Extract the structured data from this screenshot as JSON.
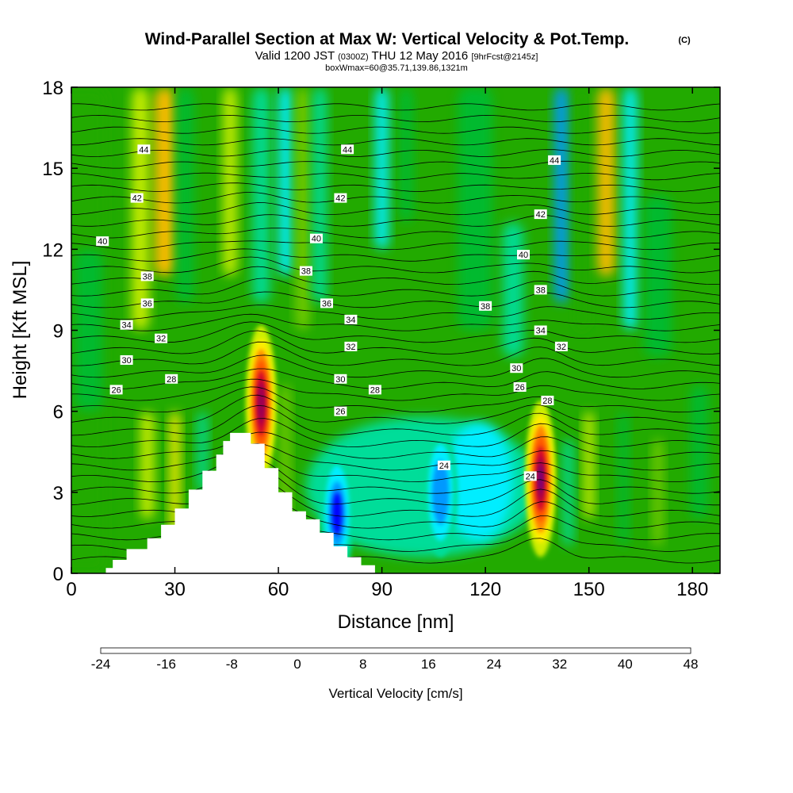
{
  "chart_data": {
    "type": "heatmap",
    "title": "Wind-Parallel Section at Max W: Vertical Velocity & Pot.Temp.",
    "title_mark": "(C)",
    "subtitle": {
      "valid": "Valid 1200 JST",
      "zulu": "(0300Z)",
      "date": "THU 12 May 2016",
      "forecast": "[9hrFcst@2145z]"
    },
    "box_note": "boxWmax=60@35.71,139.86,1321m",
    "xlabel": "Distance [nm]",
    "ylabel": "Height [Kft MSL]",
    "xlim": [
      0,
      188
    ],
    "ylim": [
      0,
      18
    ],
    "xticks": [
      0,
      30,
      60,
      90,
      120,
      150,
      180
    ],
    "yticks": [
      0,
      3,
      6,
      9,
      12,
      15,
      18
    ],
    "grid": false,
    "colorbar": {
      "label": "Vertical Velocity [cm/s]",
      "tick_labels": [
        "-24",
        "-16",
        "-8",
        "0",
        "8",
        "16",
        "24",
        "32",
        "40",
        "48"
      ],
      "tick_values": [
        -24,
        -16,
        -8,
        0,
        8,
        16,
        24,
        32,
        40,
        48
      ],
      "colors": [
        "#0000ff",
        "#1c5dff",
        "#0099ff",
        "#00eeff",
        "#00dd99",
        "#00bb33",
        "#22aa00",
        "#77cc00",
        "#ccee00",
        "#ffee00",
        "#ffbb00",
        "#ff8800",
        "#ff5500",
        "#ff1a00",
        "#cc0033",
        "#990055",
        "#660088"
      ]
    },
    "updraft_cores": [
      {
        "x": 55,
        "z": 6.3,
        "w": 38
      },
      {
        "x": 136,
        "z": 3.5,
        "w": 42
      }
    ],
    "downdraft_cores": [
      {
        "x": 77,
        "z": 2.2,
        "w": -22
      },
      {
        "x": 107,
        "z": 3.0,
        "w": -14
      }
    ],
    "terrain_peak": {
      "x": 48,
      "z": 5.2
    },
    "isentrope_labels": [
      {
        "text": "44",
        "x": 21,
        "z": 15.7
      },
      {
        "text": "44",
        "x": 80,
        "z": 15.7
      },
      {
        "text": "44",
        "x": 140,
        "z": 15.3
      },
      {
        "text": "42",
        "x": 19,
        "z": 13.9
      },
      {
        "text": "42",
        "x": 78,
        "z": 13.9
      },
      {
        "text": "42",
        "x": 136,
        "z": 13.3
      },
      {
        "text": "40",
        "x": 9,
        "z": 12.3
      },
      {
        "text": "40",
        "x": 71,
        "z": 12.4
      },
      {
        "text": "40",
        "x": 131,
        "z": 11.8
      },
      {
        "text": "38",
        "x": 22,
        "z": 11.0
      },
      {
        "text": "38",
        "x": 68,
        "z": 11.2
      },
      {
        "text": "38",
        "x": 120,
        "z": 9.9
      },
      {
        "text": "38",
        "x": 136,
        "z": 10.5
      },
      {
        "text": "36",
        "x": 22,
        "z": 10.0
      },
      {
        "text": "36",
        "x": 74,
        "z": 10.0
      },
      {
        "text": "34",
        "x": 16,
        "z": 9.2
      },
      {
        "text": "34",
        "x": 81,
        "z": 9.4
      },
      {
        "text": "34",
        "x": 136,
        "z": 9.0
      },
      {
        "text": "32",
        "x": 26,
        "z": 8.7
      },
      {
        "text": "32",
        "x": 81,
        "z": 8.4
      },
      {
        "text": "32",
        "x": 142,
        "z": 8.4
      },
      {
        "text": "30",
        "x": 16,
        "z": 7.9
      },
      {
        "text": "30",
        "x": 78,
        "z": 7.2
      },
      {
        "text": "30",
        "x": 129,
        "z": 7.6
      },
      {
        "text": "28",
        "x": 29,
        "z": 7.2
      },
      {
        "text": "28",
        "x": 88,
        "z": 6.8
      },
      {
        "text": "28",
        "x": 138,
        "z": 6.4
      },
      {
        "text": "26",
        "x": 13,
        "z": 6.8
      },
      {
        "text": "26",
        "x": 78,
        "z": 6.0
      },
      {
        "text": "26",
        "x": 130,
        "z": 6.9
      },
      {
        "text": "24",
        "x": 108,
        "z": 4.0
      },
      {
        "text": "24",
        "x": 133,
        "z": 3.6
      }
    ]
  }
}
